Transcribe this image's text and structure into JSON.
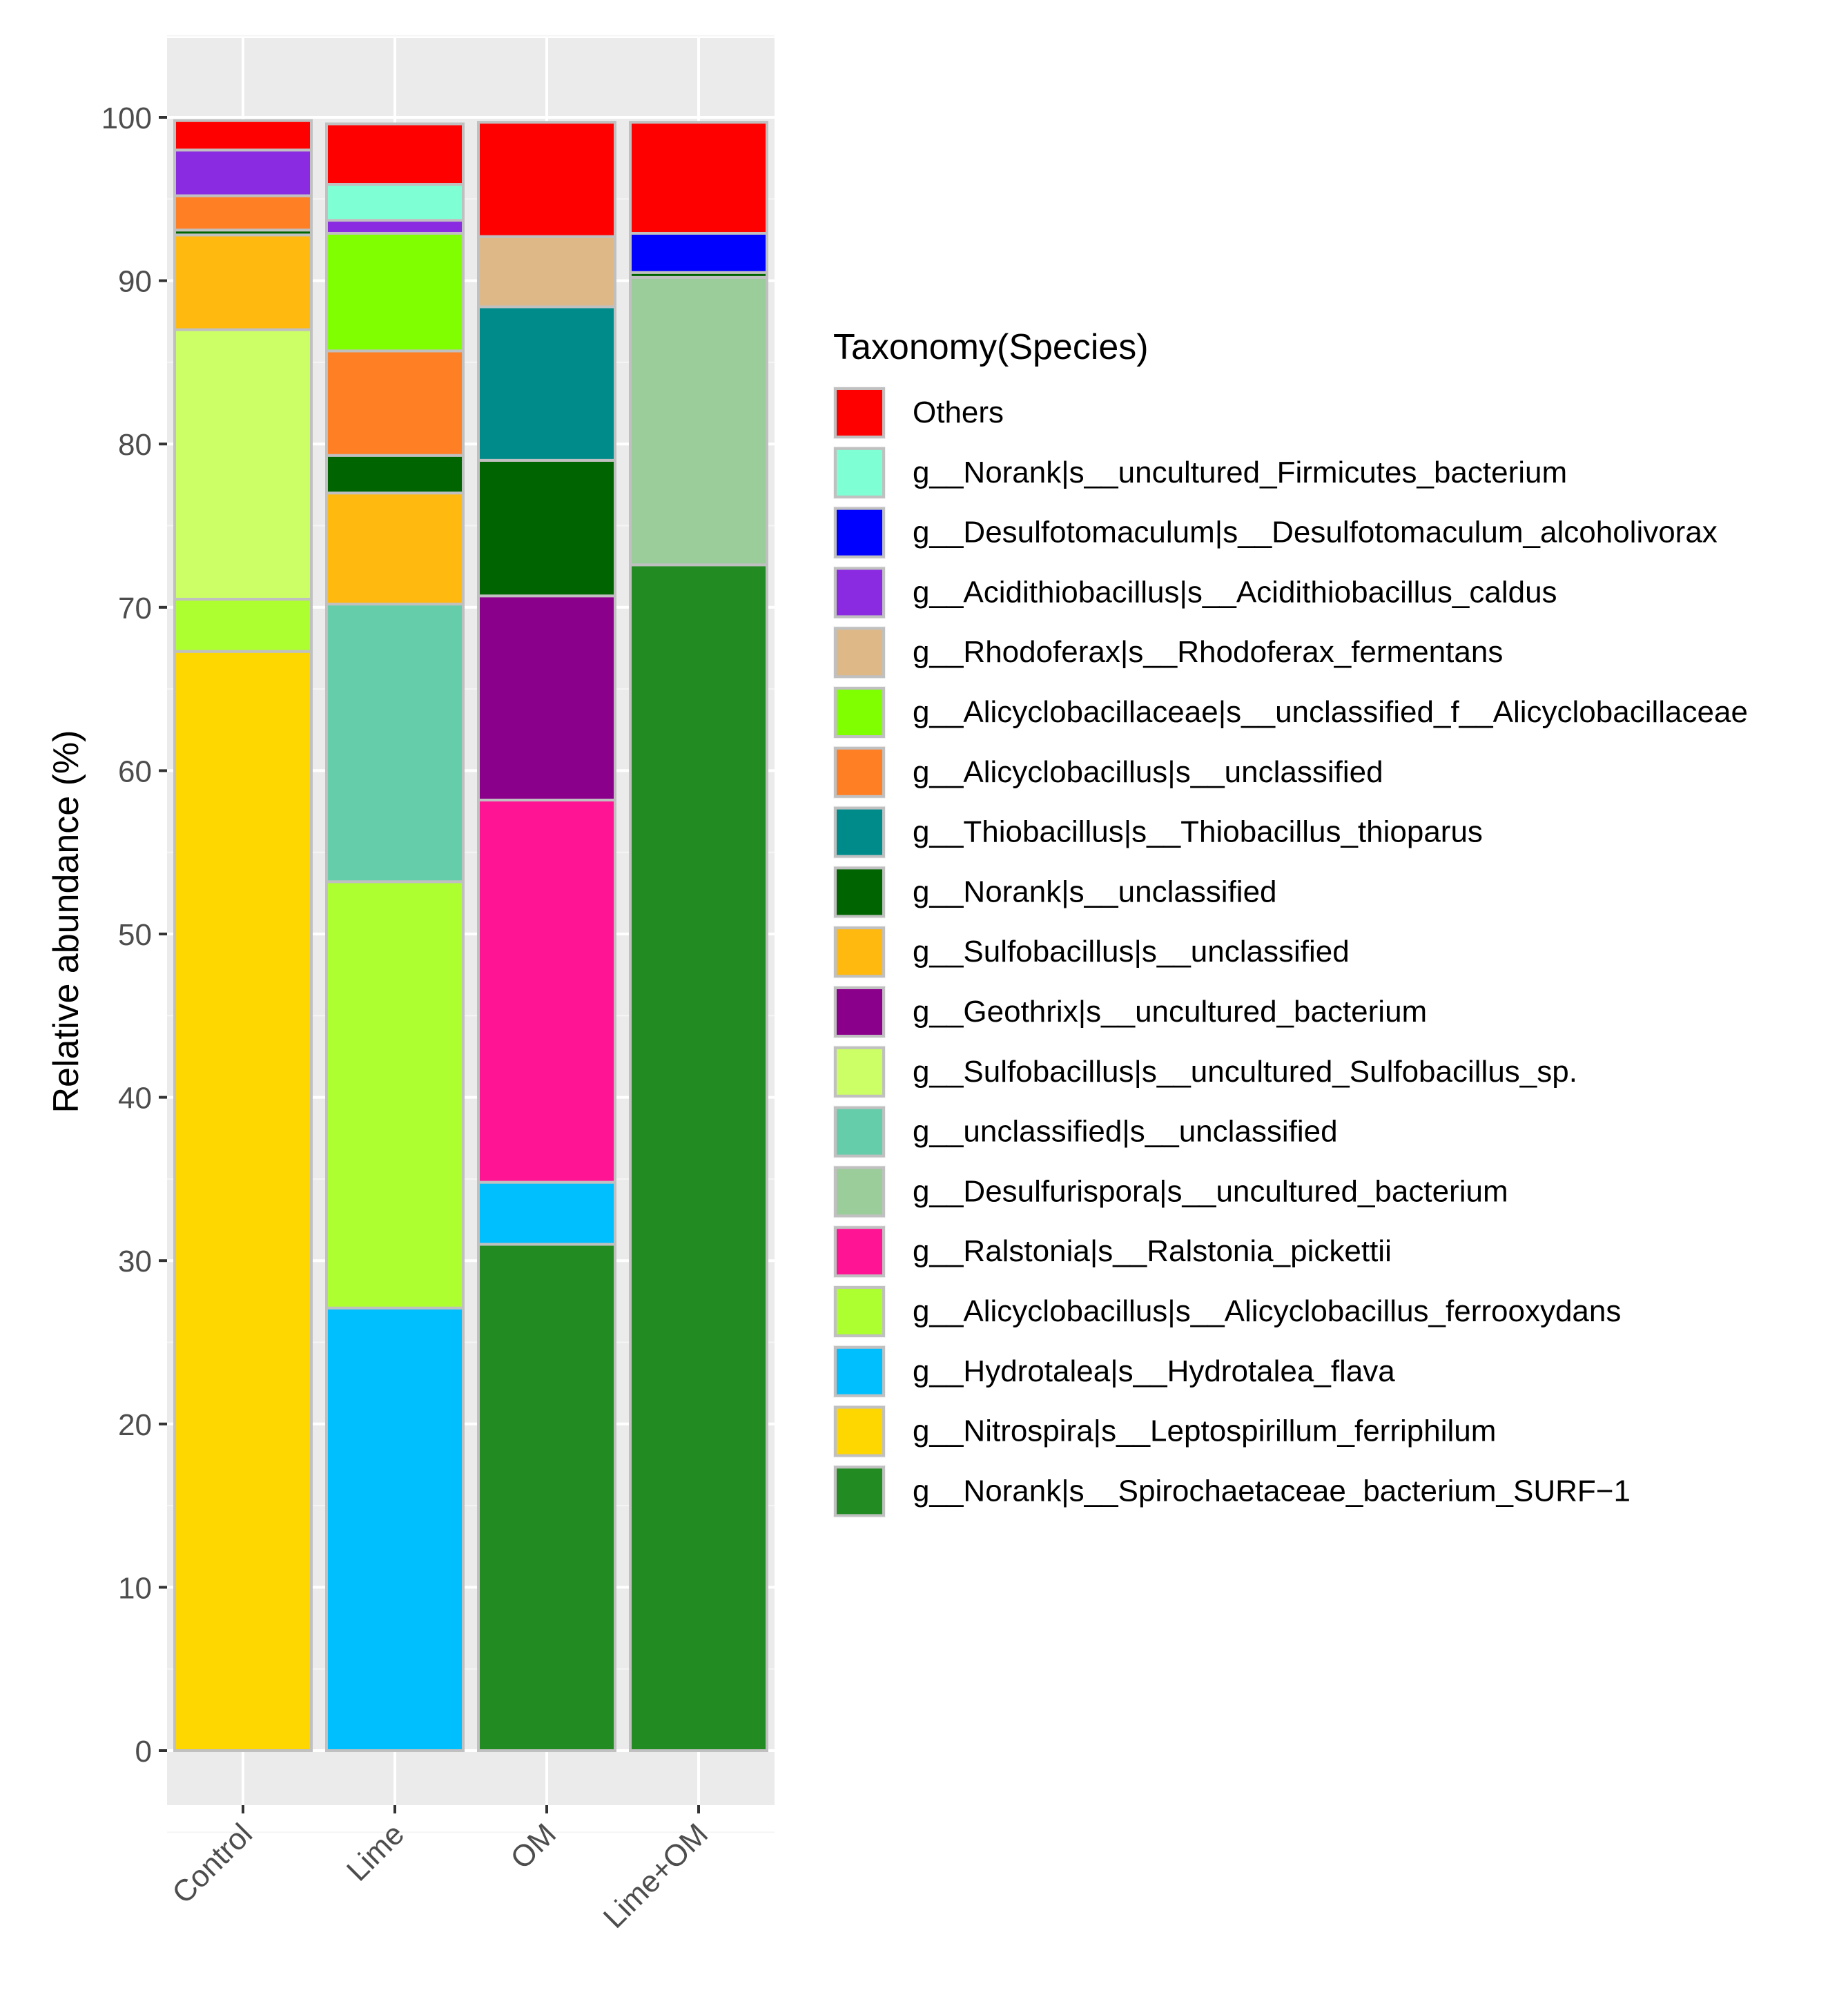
{
  "chart_data": {
    "type": "stacked-bar",
    "ylabel": "Relative abundance (%)",
    "xlabel": "",
    "ylim": [
      -5,
      105
    ],
    "yticks": [
      0,
      10,
      20,
      30,
      40,
      50,
      60,
      70,
      80,
      90,
      100
    ],
    "categories": [
      "Control",
      "Lime",
      "OM",
      "Lime+OM"
    ],
    "legend_title": "Taxonomy(Species)",
    "legend_position": "right",
    "series": [
      {
        "name": "g__Norank|s__Spirochaetaceae_bacterium_SURF−1",
        "color": "#228B22",
        "values": [
          0,
          0,
          31.0,
          72.6
        ]
      },
      {
        "name": "g__Nitrospira|s__Leptospirillum_ferriphilum",
        "color": "#FFD700",
        "values": [
          67.3,
          0,
          0,
          0
        ]
      },
      {
        "name": "g__Hydrotalea|s__Hydrotalea_flava",
        "color": "#00BFFF",
        "values": [
          0,
          27.1,
          3.8,
          0
        ]
      },
      {
        "name": "g__Alicyclobacillus|s__Alicyclobacillus_ferrooxydans",
        "color": "#ADFF2F",
        "values": [
          3.2,
          26.1,
          0,
          0
        ]
      },
      {
        "name": "g__Ralstonia|s__Ralstonia_pickettii",
        "color": "#FF1493",
        "values": [
          0,
          0,
          23.4,
          0
        ]
      },
      {
        "name": "g__Desulfurispora|s__uncultured_bacterium",
        "color": "#9ACD9A",
        "values": [
          0,
          0,
          0,
          17.6
        ]
      },
      {
        "name": "g__unclassified|s__unclassified",
        "color": "#66CDAA",
        "values": [
          0,
          17.0,
          0,
          0
        ]
      },
      {
        "name": "g__Sulfobacillus|s__uncultured_Sulfobacillus_sp.",
        "color": "#CCFF66",
        "values": [
          16.5,
          0,
          0,
          0
        ]
      },
      {
        "name": "g__Geothrix|s__uncultured_bacterium",
        "color": "#8B008B",
        "values": [
          0,
          0,
          12.5,
          0
        ]
      },
      {
        "name": "g__Sulfobacillus|s__unclassified",
        "color": "#FFB90F",
        "values": [
          5.8,
          6.8,
          0,
          0
        ]
      },
      {
        "name": "g__Norank|s__unclassified",
        "color": "#006400",
        "values": [
          0.3,
          2.3,
          8.3,
          0.3
        ]
      },
      {
        "name": "g__Thiobacillus|s__Thiobacillus_thioparus",
        "color": "#008B8B",
        "values": [
          0,
          0,
          9.4,
          0
        ]
      },
      {
        "name": "g__Alicyclobacillus|s__unclassified",
        "color": "#FF7F24",
        "values": [
          2.1,
          6.4,
          0,
          0
        ]
      },
      {
        "name": "g__Alicyclobacillaceae|s__unclassified_f__Alicyclobacillaceae",
        "color": "#7FFF00",
        "values": [
          0,
          7.2,
          0,
          0
        ]
      },
      {
        "name": "g__Rhodoferax|s__Rhodoferax_fermentans",
        "color": "#DEB887",
        "values": [
          0,
          0,
          4.3,
          0
        ]
      },
      {
        "name": "g__Acidithiobacillus|s__Acidithiobacillus_caldus",
        "color": "#8A2BE2",
        "values": [
          2.8,
          0.8,
          0,
          0
        ]
      },
      {
        "name": "g__Desulfotomaculum|s__Desulfotomaculum_alcoholivorax",
        "color": "#0000FF",
        "values": [
          0,
          0,
          0,
          2.4
        ]
      },
      {
        "name": "g__Norank|s__uncultured_Firmicutes_bacterium",
        "color": "#7FFFD4",
        "values": [
          0,
          2.2,
          0,
          0
        ]
      },
      {
        "name": "Others",
        "color": "#FF0000",
        "values": [
          1.8,
          3.7,
          7.0,
          6.8
        ]
      }
    ]
  }
}
